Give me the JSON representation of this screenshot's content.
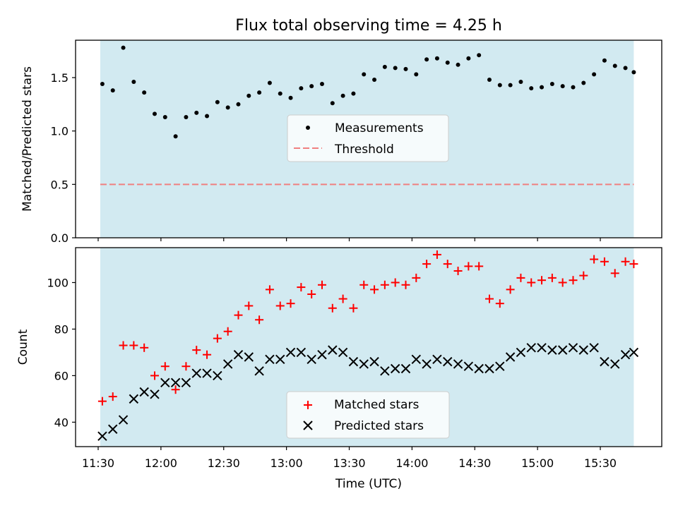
{
  "chart_data": [
    {
      "type": "scatter",
      "title": "Flux total observing time = 4.25 h",
      "ylabel": "Matched/Predicted stars",
      "xlabel": "",
      "ylim": [
        0,
        1.85
      ],
      "yticks": [
        0,
        0.5,
        1.0,
        1.5
      ],
      "ytick_labels": [
        "0.0",
        "0.5",
        "1.0",
        "1.5"
      ],
      "shaded_region": {
        "x_start": "11:31",
        "x_end": "15:46",
        "color": "#add8e6"
      },
      "legend_position": "center",
      "series": [
        {
          "name": "Measurements",
          "marker": "dot",
          "color": "#000000",
          "x": [
            "11:32",
            "11:37",
            "11:42",
            "11:47",
            "11:52",
            "11:57",
            "12:02",
            "12:07",
            "12:12",
            "12:17",
            "12:22",
            "12:27",
            "12:32",
            "12:37",
            "12:42",
            "12:47",
            "12:52",
            "12:57",
            "13:02",
            "13:07",
            "13:12",
            "13:17",
            "13:22",
            "13:27",
            "13:32",
            "13:37",
            "13:42",
            "13:47",
            "13:52",
            "13:57",
            "14:02",
            "14:07",
            "14:12",
            "14:17",
            "14:22",
            "14:27",
            "14:32",
            "14:37",
            "14:42",
            "14:47",
            "14:52",
            "14:57",
            "15:02",
            "15:07",
            "15:12",
            "15:17",
            "15:22",
            "15:27",
            "15:32",
            "15:37",
            "15:42",
            "15:46"
          ],
          "y": [
            1.44,
            1.38,
            1.78,
            1.46,
            1.36,
            1.16,
            1.13,
            0.95,
            1.13,
            1.17,
            1.14,
            1.27,
            1.22,
            1.25,
            1.33,
            1.36,
            1.45,
            1.35,
            1.31,
            1.4,
            1.42,
            1.44,
            1.26,
            1.33,
            1.35,
            1.53,
            1.48,
            1.6,
            1.59,
            1.58,
            1.53,
            1.67,
            1.68,
            1.64,
            1.62,
            1.68,
            1.71,
            1.48,
            1.43,
            1.43,
            1.46,
            1.4,
            1.41,
            1.44,
            1.42,
            1.41,
            1.45,
            1.53,
            1.66,
            1.61,
            1.59,
            1.55
          ]
        },
        {
          "name": "Threshold",
          "line_style": "dashed",
          "color": "#f08080",
          "y_value": 0.5
        }
      ]
    },
    {
      "type": "scatter",
      "title": "",
      "xlabel": "Time (UTC)",
      "ylabel": "Count",
      "ylim": [
        29.5,
        115
      ],
      "yticks": [
        40,
        60,
        80,
        100
      ],
      "ytick_labels": [
        "40",
        "60",
        "80",
        "100"
      ],
      "xticks": [
        "11:30",
        "12:00",
        "12:30",
        "13:00",
        "13:30",
        "14:00",
        "14:30",
        "15:00",
        "15:30"
      ],
      "shaded_region": {
        "x_start": "11:31",
        "x_end": "15:46",
        "color": "#add8e6"
      },
      "legend_position": "bottom-center",
      "series": [
        {
          "name": "Matched stars",
          "marker": "plus",
          "color": "#ff0000",
          "x": [
            "11:32",
            "11:37",
            "11:42",
            "11:47",
            "11:52",
            "11:57",
            "12:02",
            "12:07",
            "12:12",
            "12:17",
            "12:22",
            "12:27",
            "12:32",
            "12:37",
            "12:42",
            "12:47",
            "12:52",
            "12:57",
            "13:02",
            "13:07",
            "13:12",
            "13:17",
            "13:22",
            "13:27",
            "13:32",
            "13:37",
            "13:42",
            "13:47",
            "13:52",
            "13:57",
            "14:02",
            "14:07",
            "14:12",
            "14:17",
            "14:22",
            "14:27",
            "14:32",
            "14:37",
            "14:42",
            "14:47",
            "14:52",
            "14:57",
            "15:02",
            "15:07",
            "15:12",
            "15:17",
            "15:22",
            "15:27",
            "15:32",
            "15:37",
            "15:42",
            "15:46"
          ],
          "y": [
            49,
            51,
            73,
            73,
            72,
            60,
            64,
            54,
            64,
            71,
            69,
            76,
            79,
            86,
            90,
            84,
            97,
            90,
            91,
            98,
            95,
            99,
            89,
            93,
            89,
            99,
            97,
            99,
            100,
            99,
            102,
            108,
            112,
            108,
            105,
            107,
            107,
            93,
            91,
            97,
            102,
            100,
            101,
            102,
            100,
            101,
            103,
            110,
            109,
            104,
            109,
            108
          ]
        },
        {
          "name": "Predicted stars",
          "marker": "x",
          "color": "#000000",
          "x": [
            "11:32",
            "11:37",
            "11:42",
            "11:47",
            "11:52",
            "11:57",
            "12:02",
            "12:07",
            "12:12",
            "12:17",
            "12:22",
            "12:27",
            "12:32",
            "12:37",
            "12:42",
            "12:47",
            "12:52",
            "12:57",
            "13:02",
            "13:07",
            "13:12",
            "13:17",
            "13:22",
            "13:27",
            "13:32",
            "13:37",
            "13:42",
            "13:47",
            "13:52",
            "13:57",
            "14:02",
            "14:07",
            "14:12",
            "14:17",
            "14:22",
            "14:27",
            "14:32",
            "14:37",
            "14:42",
            "14:47",
            "14:52",
            "14:57",
            "15:02",
            "15:07",
            "15:12",
            "15:17",
            "15:22",
            "15:27",
            "15:32",
            "15:37",
            "15:42",
            "15:46"
          ],
          "y": [
            34,
            37,
            41,
            50,
            53,
            52,
            57,
            57,
            57,
            61,
            61,
            60,
            65,
            69,
            68,
            62,
            67,
            67,
            70,
            70,
            67,
            69,
            71,
            70,
            66,
            65,
            66,
            62,
            63,
            63,
            67,
            65,
            67,
            66,
            65,
            64,
            63,
            63,
            64,
            68,
            70,
            72,
            72,
            71,
            71,
            72,
            71,
            72,
            66,
            65,
            69,
            70
          ]
        }
      ]
    }
  ]
}
